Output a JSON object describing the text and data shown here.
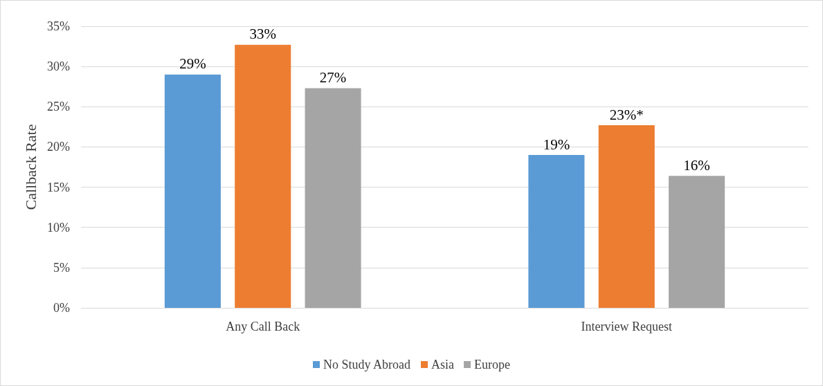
{
  "chart_data": {
    "type": "bar",
    "ylabel": "Callback Rate",
    "categories": [
      "Any Call Back",
      "Interview Request"
    ],
    "series": [
      {
        "name": "No Study Abroad",
        "color": "#5b9bd5",
        "values": [
          29.0,
          19.0
        ],
        "value_labels": [
          "29%",
          "19%"
        ]
      },
      {
        "name": "Asia",
        "color": "#ed7d31",
        "values": [
          32.7,
          22.7
        ],
        "value_labels": [
          "33%",
          "23%*"
        ]
      },
      {
        "name": "Europe",
        "color": "#a5a5a5",
        "values": [
          27.3,
          16.4
        ],
        "value_labels": [
          "27%",
          "16%"
        ]
      }
    ],
    "ylim": [
      0,
      35
    ],
    "yticks": [
      {
        "value": 0,
        "label": "0%"
      },
      {
        "value": 5,
        "label": "5%"
      },
      {
        "value": 10,
        "label": "10%"
      },
      {
        "value": 15,
        "label": "15%"
      },
      {
        "value": 20,
        "label": "20%"
      },
      {
        "value": 25,
        "label": "25%"
      },
      {
        "value": 30,
        "label": "30%"
      },
      {
        "value": 35,
        "label": "35%"
      }
    ],
    "grid": "y",
    "legend": "bottom"
  }
}
